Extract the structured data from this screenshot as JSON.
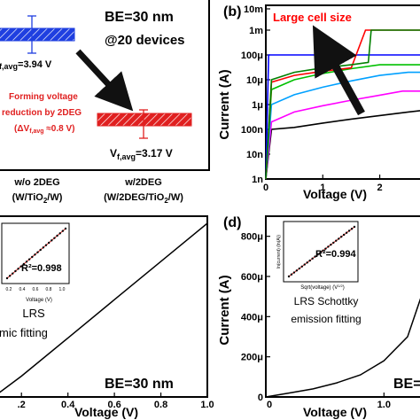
{
  "panel_a": {
    "be_label": "BE=30 nm",
    "devices_label": "@20 devices",
    "vf_upper": "f,avg",
    "vf_upper_value": "=3.94 V",
    "forming_line1": "Forming voltage",
    "forming_line2": "reduction by 2DEG",
    "forming_line3": "(ΔV",
    "forming_sub": "f,avg",
    "forming_line3b": " ≈0.8 V)",
    "vf_lower_prefix": "V",
    "vf_lower_sub": "f,avg",
    "vf_lower_value": "=3.17 V",
    "cat1_line1": "w/o 2DEG",
    "cat1_line2": "(W/TiO",
    "cat1_sub": "2",
    "cat1_line2b": "/W)",
    "cat2_line1": "w/2DEG",
    "cat2_line2": "(W/2DEG/TiO",
    "cat2_sub": "2",
    "cat2_line2b": "/W)",
    "colors": {
      "bar_blue": "#1f3fe0",
      "bar_red": "#e02020",
      "arrow": "#111111"
    }
  },
  "panel_b": {
    "letter": "(b)",
    "annotation": "Large cell size",
    "ylabel": "Current (A)",
    "xlabel": "Voltage (V)",
    "yticks": [
      "10m",
      "1m",
      "100μ",
      "10μ",
      "1μ",
      "100n",
      "10n",
      "1n"
    ],
    "xticks": [
      "0",
      "1",
      "2"
    ]
  },
  "panel_c": {
    "inset_r2": "R²=0.998",
    "inset_xlabel": "Voltage (V)",
    "inset_xticks": [
      "0.2",
      "0.4",
      "0.6",
      "0.8",
      "1.0"
    ],
    "label_line1": "LRS",
    "label_line2": "mic fitting",
    "be_label": "BE=30 nm",
    "xlabel": "Voltage (V)",
    "xticks": [
      ".2",
      "0.4",
      "0.6",
      "0.8",
      "1.0"
    ]
  },
  "panel_d": {
    "letter": "(d)",
    "ylabel": "Current (A)",
    "yticks": [
      "800μ",
      "600μ",
      "400μ",
      "200μ",
      "0"
    ],
    "inset_r2": "R²=0.994",
    "inset_ylabel": "ln(current) (ln(A))",
    "inset_xlabel": "Sqrt(voltage) (V",
    "inset_xlabel_sup": "1/2",
    "inset_xlabel_end": ")",
    "label_line1": "LRS Schottky",
    "label_line2": "emission fitting",
    "be_label": "BE=",
    "xlabel": "Voltage (V)",
    "xticks": [
      "0",
      "1.0"
    ]
  },
  "chart_data": [
    {
      "type": "bar",
      "panel": "a",
      "categories": [
        "w/o 2DEG (W/TiO2/W)",
        "w/2DEG (W/2DEG/TiO2/W)"
      ],
      "values": [
        3.94,
        3.17
      ],
      "ylabel": ""
    },
    {
      "type": "line",
      "panel": "b",
      "xlabel": "Voltage (V)",
      "ylabel": "Current (A)",
      "yscale": "log",
      "ylim": [
        1e-09,
        0.01
      ],
      "xlim": [
        0,
        2.8
      ],
      "series": [
        {
          "color": "#000000",
          "x": [
            0,
            0.1,
            0.5,
            1.0,
            1.5,
            2.0,
            2.5,
            2.8
          ],
          "y": [
            1e-09,
            1e-07,
            1.2e-07,
            1.8e-07,
            2.6e-07,
            3.6e-07,
            5e-07,
            6e-07
          ]
        },
        {
          "color": "#ff00ff",
          "x": [
            0,
            0.1,
            0.5,
            1.0,
            1.5,
            2.0,
            2.4,
            2.8
          ],
          "y": [
            1e-09,
            2e-07,
            5e-07,
            9e-07,
            1.5e-06,
            2.4e-06,
            3.5e-06,
            3.5e-06
          ]
        },
        {
          "color": "#00a0ff",
          "x": [
            0,
            0.1,
            0.5,
            1.0,
            1.5,
            2.0,
            2.5,
            2.8
          ],
          "y": [
            1e-09,
            1e-06,
            2.5e-06,
            5e-06,
            9e-06,
            1.5e-05,
            2e-05,
            2e-05
          ]
        },
        {
          "color": "#00c000",
          "x": [
            0,
            0.1,
            0.5,
            1.0,
            1.5,
            2.0,
            2.8
          ],
          "y": [
            1e-09,
            4e-06,
            1e-05,
            1.8e-05,
            2.8e-05,
            4e-05,
            4e-05
          ]
        },
        {
          "color": "#0000ff",
          "x": [
            0,
            0.05,
            0.5,
            1.0,
            1.8,
            2.3,
            2.8
          ],
          "y": [
            1e-09,
            0.0001,
            0.0001,
            0.0001,
            0.0001,
            0.0001,
            0.0001
          ]
        },
        {
          "color": "#ff0000",
          "x": [
            0,
            0.1,
            0.5,
            1.0,
            1.5,
            1.75,
            2.8
          ],
          "y": [
            1e-09,
            8e-06,
            1.5e-05,
            2.2e-05,
            3e-05,
            0.001,
            0.001
          ]
        },
        {
          "color": "#008000",
          "x": [
            0,
            0.1,
            0.5,
            1.0,
            1.5,
            1.8,
            1.85,
            2.8
          ],
          "y": [
            1e-09,
            1e-05,
            2e-05,
            3e-05,
            4e-05,
            5e-05,
            0.001,
            0.001
          ]
        }
      ]
    },
    {
      "type": "line",
      "panel": "c",
      "xlabel": "Voltage (V)",
      "xlim": [
        0.1,
        1.0
      ],
      "series": [
        {
          "color": "#000000",
          "x": [
            0.1,
            0.2,
            0.4,
            0.6,
            0.8,
            1.0
          ],
          "y": [
            0.02,
            0.12,
            0.34,
            0.56,
            0.78,
            1.0
          ]
        }
      ]
    },
    {
      "type": "line",
      "panel": "d",
      "xlabel": "Voltage (V)",
      "ylabel": "Current (A)",
      "ylim": [
        0,
        0.0009
      ],
      "series": [
        {
          "color": "#000000",
          "x": [
            0,
            0.2,
            0.4,
            0.6,
            0.8,
            1.0,
            1.2,
            1.35
          ],
          "y": [
            0,
            2e-05,
            4e-05,
            7e-05,
            0.00011,
            0.00018,
            0.0003,
            0.00056
          ]
        }
      ]
    }
  ]
}
